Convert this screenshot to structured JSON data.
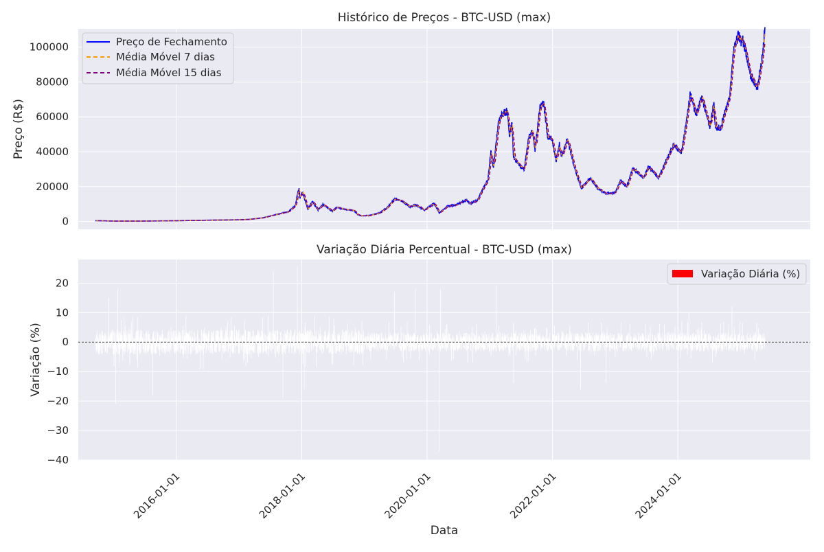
{
  "chart_data": [
    {
      "type": "line",
      "title": "Histórico de Preços - BTC-USD (max)",
      "xlabel": "",
      "ylabel": "Preço (R$)",
      "xlim": [
        "2014-06-10",
        "2026-02-10"
      ],
      "ylim": [
        -4500,
        110500
      ],
      "yticks": [
        0,
        20000,
        40000,
        60000,
        80000,
        100000
      ],
      "xgrid_dates": [
        "2016-01-01",
        "2018-01-01",
        "2020-01-01",
        "2022-01-01",
        "2024-01-01"
      ],
      "grid": true,
      "legend_position": "upper left",
      "colors": {
        "close": "#0000ff",
        "ma7": "#ff9900",
        "ma15": "#800080"
      },
      "series": [
        {
          "name": "Preço de Fechamento",
          "style": "solid",
          "points": [
            [
              "2014-09-17",
              457
            ],
            [
              "2015-01-15",
              210
            ],
            [
              "2015-06-01",
              230
            ],
            [
              "2015-12-01",
              380
            ],
            [
              "2016-06-15",
              700
            ],
            [
              "2016-12-31",
              960
            ],
            [
              "2017-03-01",
              1200
            ],
            [
              "2017-05-20",
              2100
            ],
            [
              "2017-08-15",
              4200
            ],
            [
              "2017-10-15",
              5600
            ],
            [
              "2017-11-25",
              9000
            ],
            [
              "2017-12-08",
              16000
            ],
            [
              "2017-12-17",
              19300
            ],
            [
              "2017-12-22",
              13500
            ],
            [
              "2018-01-06",
              17000
            ],
            [
              "2018-02-06",
              7000
            ],
            [
              "2018-03-05",
              11500
            ],
            [
              "2018-04-06",
              6600
            ],
            [
              "2018-05-05",
              9800
            ],
            [
              "2018-06-29",
              5900
            ],
            [
              "2018-07-25",
              8200
            ],
            [
              "2018-09-01",
              7100
            ],
            [
              "2018-11-01",
              6300
            ],
            [
              "2018-11-25",
              3800
            ],
            [
              "2018-12-15",
              3200
            ],
            [
              "2019-02-01",
              3450
            ],
            [
              "2019-04-02",
              5000
            ],
            [
              "2019-05-15",
              8000
            ],
            [
              "2019-06-26",
              12900
            ],
            [
              "2019-08-06",
              11800
            ],
            [
              "2019-09-25",
              8400
            ],
            [
              "2019-10-26",
              9500
            ],
            [
              "2019-12-18",
              6600
            ],
            [
              "2020-02-12",
              10300
            ],
            [
              "2020-03-12",
              4900
            ],
            [
              "2020-05-01",
              8800
            ],
            [
              "2020-06-15",
              9400
            ],
            [
              "2020-08-17",
              12300
            ],
            [
              "2020-09-10",
              10300
            ],
            [
              "2020-10-20",
              12000
            ],
            [
              "2020-11-20",
              18500
            ],
            [
              "2020-12-20",
              23500
            ],
            [
              "2021-01-08",
              40500
            ],
            [
              "2021-01-22",
              30500
            ],
            [
              "2021-02-21",
              57500
            ],
            [
              "2021-03-13",
              61300
            ],
            [
              "2021-04-14",
              63500
            ],
            [
              "2021-04-25",
              49000
            ],
            [
              "2021-05-10",
              57000
            ],
            [
              "2021-05-19",
              37000
            ],
            [
              "2021-06-22",
              32500
            ],
            [
              "2021-07-20",
              29800
            ],
            [
              "2021-08-14",
              47500
            ],
            [
              "2021-09-06",
              52000
            ],
            [
              "2021-09-21",
              40700
            ],
            [
              "2021-10-20",
              66000
            ],
            [
              "2021-11-10",
              68000
            ],
            [
              "2021-12-04",
              48000
            ],
            [
              "2021-12-28",
              47500
            ],
            [
              "2022-01-22",
              35000
            ],
            [
              "2022-02-10",
              44000
            ],
            [
              "2022-02-24",
              37000
            ],
            [
              "2022-03-29",
              47500
            ],
            [
              "2022-05-09",
              30500
            ],
            [
              "2022-06-18",
              19000
            ],
            [
              "2022-07-31",
              24000
            ],
            [
              "2022-08-13",
              24500
            ],
            [
              "2022-09-20",
              19000
            ],
            [
              "2022-11-09",
              16000
            ],
            [
              "2022-12-31",
              16500
            ],
            [
              "2023-02-01",
              23500
            ],
            [
              "2023-03-10",
              20000
            ],
            [
              "2023-04-13",
              30500
            ],
            [
              "2023-06-15",
              25000
            ],
            [
              "2023-07-13",
              31500
            ],
            [
              "2023-09-11",
              25000
            ],
            [
              "2023-10-24",
              34500
            ],
            [
              "2023-12-08",
              44000
            ],
            [
              "2024-01-22",
              39500
            ],
            [
              "2024-02-28",
              62500
            ],
            [
              "2024-03-13",
              73000
            ],
            [
              "2024-04-17",
              61000
            ],
            [
              "2024-05-21",
              71500
            ],
            [
              "2024-07-05",
              54000
            ],
            [
              "2024-07-29",
              68000
            ],
            [
              "2024-08-05",
              54000
            ],
            [
              "2024-09-06",
              53500
            ],
            [
              "2024-10-29",
              72000
            ],
            [
              "2024-11-22",
              99000
            ],
            [
              "2024-12-17",
              106000
            ],
            [
              "2025-01-20",
              102000
            ],
            [
              "2025-02-28",
              84000
            ],
            [
              "2025-04-08",
              76500
            ],
            [
              "2025-05-10",
              96000
            ],
            [
              "2025-05-22",
              111500
            ]
          ]
        },
        {
          "name": "Média Móvel 7 dias",
          "style": "dashed",
          "window": 7
        },
        {
          "name": "Média Móvel 15 dias",
          "style": "dashed",
          "window": 15
        }
      ]
    },
    {
      "type": "bar",
      "title": "Variação Diária Percentual - BTC-USD (max)",
      "xlabel": "Data",
      "ylabel": "Variação (%)",
      "ylim": [
        -40,
        28
      ],
      "yticks": [
        20,
        10,
        0,
        -10,
        -20,
        -30,
        -40
      ],
      "xticks": [
        "2016-01-01",
        "2018-01-01",
        "2020-01-01",
        "2022-01-01",
        "2024-01-01"
      ],
      "grid": true,
      "zero_line": true,
      "legend_position": "upper right",
      "series": [
        {
          "name": "Variação Diária (%)",
          "color": "#ff0000",
          "bar_color_rendered": "#ffffff"
        }
      ],
      "notable_values": [
        [
          "2015-01-14",
          -21
        ],
        [
          "2014-12-05",
          15
        ],
        [
          "2015-01-26",
          18
        ],
        [
          "2015-08-18",
          -18
        ],
        [
          "2017-07-20",
          24
        ],
        [
          "2017-09-14",
          -19
        ],
        [
          "2017-12-07",
          25.5
        ],
        [
          "2018-01-16",
          -16
        ],
        [
          "2019-06-26",
          17
        ],
        [
          "2019-10-25",
          18
        ],
        [
          "2020-03-12",
          -37
        ],
        [
          "2020-03-19",
          18
        ],
        [
          "2021-02-08",
          19
        ],
        [
          "2021-05-19",
          -14
        ],
        [
          "2022-06-13",
          -16
        ],
        [
          "2022-11-09",
          -14
        ],
        [
          "2024-03-05",
          10
        ],
        [
          "2024-11-11",
          12
        ]
      ]
    }
  ]
}
